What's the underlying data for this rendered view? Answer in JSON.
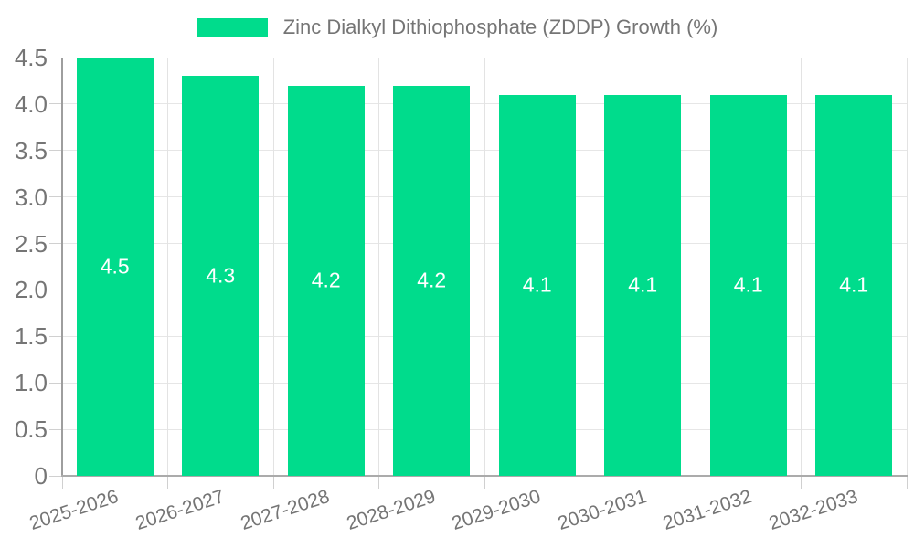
{
  "legend": {
    "label": "Zinc Dialkyl Dithiophosphate (ZDDP) Growth (%)"
  },
  "colors": {
    "bar": "#00dc8c",
    "axis_text": "#757575",
    "bar_label_text": "#ffffff",
    "grid": "#e6e6e6",
    "axis_line": "#9e9e9e"
  },
  "chart_data": {
    "type": "bar",
    "title": "Zinc Dialkyl Dithiophosphate (ZDDP) Growth (%)",
    "categories": [
      "2025-2026",
      "2026-2027",
      "2027-2028",
      "2028-2029",
      "2029-2030",
      "2030-2031",
      "2031-2032",
      "2032-2033"
    ],
    "values": [
      4.5,
      4.3,
      4.2,
      4.2,
      4.1,
      4.1,
      4.1,
      4.1
    ],
    "bar_labels": [
      "4.5",
      "4.3",
      "4.2",
      "4.2",
      "4.1",
      "4.1",
      "4.1",
      "4.1"
    ],
    "xlabel": "",
    "ylabel": "",
    "ylim": [
      0,
      4.5
    ],
    "ytick_step": 0.5,
    "ytick_labels": [
      "0",
      "0.5",
      "1.0",
      "1.5",
      "2.0",
      "2.5",
      "3.0",
      "3.5",
      "4.0",
      "4.5"
    ],
    "grid": true,
    "legend_position": "top"
  }
}
